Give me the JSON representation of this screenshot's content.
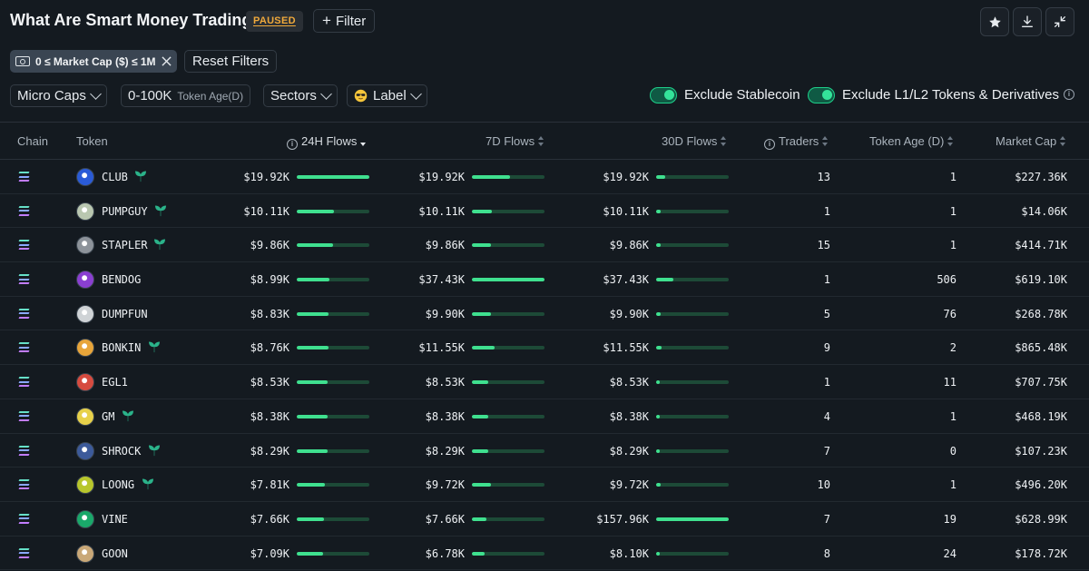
{
  "header": {
    "title": "What Are Smart Money Trading?",
    "status_badge": "PAUSED",
    "filter_button": "Filter"
  },
  "filters": {
    "active_chip": "0 ≤ Market Cap ($) ≤ 1M",
    "reset_label": "Reset Filters",
    "market_cap_select": "Micro Caps",
    "token_age_value": "0-100K",
    "token_age_label": "Token Age(D)",
    "sectors_select": "Sectors",
    "label_select": "Label",
    "exclude_stablecoin": "Exclude Stablecoin",
    "exclude_l1l2": "Exclude L1/L2 Tokens & Derivatives"
  },
  "colors": {
    "accent_green": "#3fe08f",
    "badge_orange": "#f0a93b",
    "background": "#141a20"
  },
  "table": {
    "columns": {
      "chain": "Chain",
      "token": "Token",
      "flows_24h": "24H Flows",
      "flows_7d": "7D Flows",
      "flows_30d": "30D Flows",
      "traders": "Traders",
      "token_age": "Token Age (D)",
      "market_cap": "Market Cap"
    },
    "rows": [
      {
        "token": "CLUB",
        "leaf": true,
        "f24": "$19.92K",
        "b24": 1.0,
        "f7": "$19.92K",
        "b7": 0.53,
        "f30": "$19.92K",
        "b30": 0.13,
        "traders": "13",
        "age": "1",
        "mcap": "$227.36K",
        "icon": "#2a5bd7"
      },
      {
        "token": "PUMPGUY",
        "leaf": true,
        "f24": "$10.11K",
        "b24": 0.51,
        "f7": "$10.11K",
        "b7": 0.27,
        "f30": "$10.11K",
        "b30": 0.06,
        "traders": "1",
        "age": "1",
        "mcap": "$14.06K",
        "icon": "#b9c7b0"
      },
      {
        "token": "STAPLER",
        "leaf": true,
        "f24": "$9.86K",
        "b24": 0.5,
        "f7": "$9.86K",
        "b7": 0.26,
        "f30": "$9.86K",
        "b30": 0.06,
        "traders": "15",
        "age": "1",
        "mcap": "$414.71K",
        "icon": "#8d939a"
      },
      {
        "token": "BENDOG",
        "leaf": false,
        "f24": "$8.99K",
        "b24": 0.45,
        "f7": "$37.43K",
        "b7": 1.0,
        "f30": "$37.43K",
        "b30": 0.24,
        "traders": "1",
        "age": "506",
        "mcap": "$619.10K",
        "icon": "#8a3fd1"
      },
      {
        "token": "DUMPFUN",
        "leaf": false,
        "f24": "$8.83K",
        "b24": 0.44,
        "f7": "$9.90K",
        "b7": 0.26,
        "f30": "$9.90K",
        "b30": 0.06,
        "traders": "5",
        "age": "76",
        "mcap": "$268.78K",
        "icon": "#cfd3d6"
      },
      {
        "token": "BONKIN",
        "leaf": true,
        "f24": "$8.76K",
        "b24": 0.44,
        "f7": "$11.55K",
        "b7": 0.31,
        "f30": "$11.55K",
        "b30": 0.07,
        "traders": "9",
        "age": "2",
        "mcap": "$865.48K",
        "icon": "#e8a53a"
      },
      {
        "token": "EGL1",
        "leaf": false,
        "f24": "$8.53K",
        "b24": 0.43,
        "f7": "$8.53K",
        "b7": 0.23,
        "f30": "$8.53K",
        "b30": 0.05,
        "traders": "1",
        "age": "11",
        "mcap": "$707.75K",
        "icon": "#d64b3f"
      },
      {
        "token": "GM",
        "leaf": true,
        "f24": "$8.38K",
        "b24": 0.42,
        "f7": "$8.38K",
        "b7": 0.22,
        "f30": "$8.38K",
        "b30": 0.05,
        "traders": "4",
        "age": "1",
        "mcap": "$468.19K",
        "icon": "#e7d14a"
      },
      {
        "token": "SHROCK",
        "leaf": true,
        "f24": "$8.29K",
        "b24": 0.42,
        "f7": "$8.29K",
        "b7": 0.22,
        "f30": "$8.29K",
        "b30": 0.05,
        "traders": "7",
        "age": "0",
        "mcap": "$107.23K",
        "icon": "#3c5a9a"
      },
      {
        "token": "LOONG",
        "leaf": true,
        "f24": "$7.81K",
        "b24": 0.39,
        "f7": "$9.72K",
        "b7": 0.26,
        "f30": "$9.72K",
        "b30": 0.06,
        "traders": "10",
        "age": "1",
        "mcap": "$496.20K",
        "icon": "#b8c62c"
      },
      {
        "token": "VINE",
        "leaf": false,
        "f24": "$7.66K",
        "b24": 0.38,
        "f7": "$7.66K",
        "b7": 0.2,
        "f30": "$157.96K",
        "b30": 1.0,
        "traders": "7",
        "age": "19",
        "mcap": "$628.99K",
        "icon": "#1aa86a"
      },
      {
        "token": "GOON",
        "leaf": false,
        "f24": "$7.09K",
        "b24": 0.36,
        "f7": "$6.78K",
        "b7": 0.18,
        "f30": "$8.10K",
        "b30": 0.05,
        "traders": "8",
        "age": "24",
        "mcap": "$178.72K",
        "icon": "#c9a878"
      }
    ]
  }
}
